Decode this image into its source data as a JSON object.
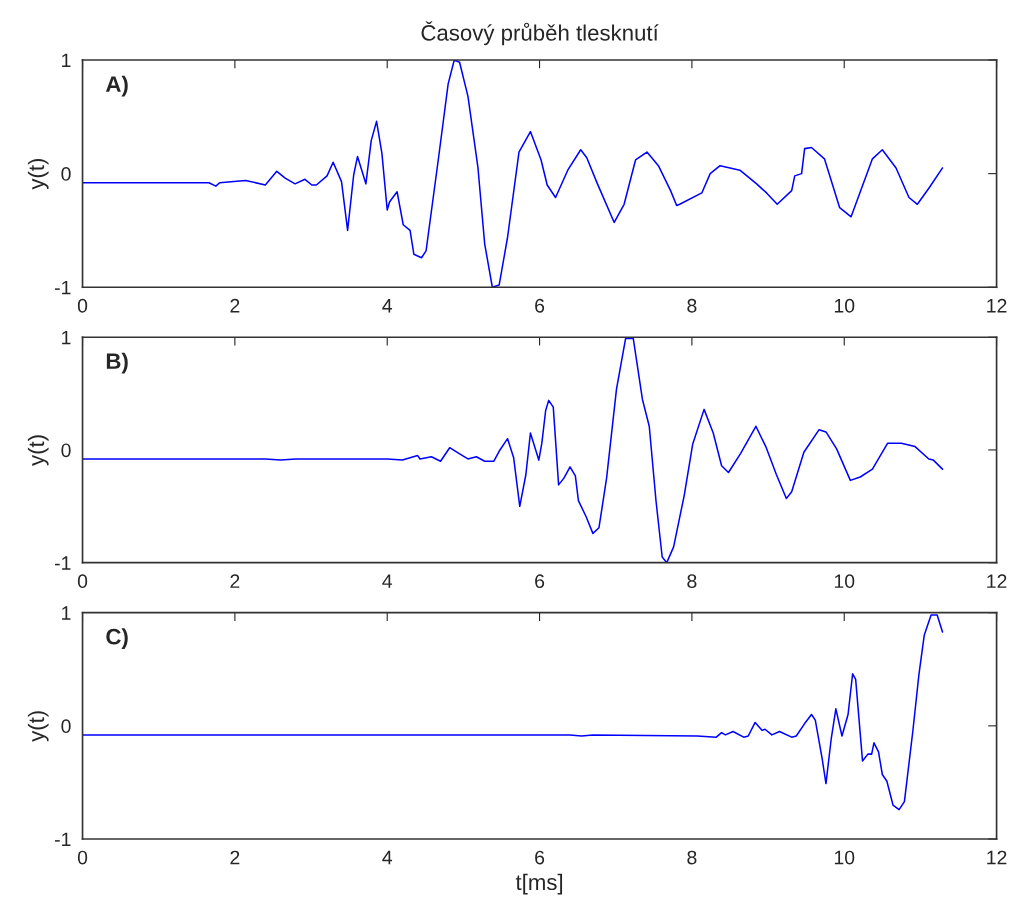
{
  "chart_data": [
    {
      "type": "line",
      "title": "Časový průběh tlesknutí",
      "ylabel": "y(t)",
      "annotations": [
        "A)"
      ],
      "xlim": [
        0,
        12
      ],
      "ylim": [
        -1,
        1
      ],
      "xticks": [
        0,
        2,
        4,
        6,
        8,
        10,
        12
      ],
      "yticks": [
        -1,
        0,
        1
      ],
      "grid": false,
      "legend": false,
      "series": [
        {
          "color": "#0000ff",
          "x": [
            0,
            1.66,
            1.75,
            1.8,
            2.14,
            2.4,
            2.55,
            2.66,
            2.79,
            2.92,
            3.01,
            3.07,
            3.21,
            3.29,
            3.4,
            3.48,
            3.56,
            3.61,
            3.72,
            3.79,
            3.86,
            3.93,
            4.0,
            4.03,
            4.13,
            4.21,
            4.3,
            4.35,
            4.45,
            4.51,
            4.67,
            4.8,
            4.88,
            4.95,
            5.06,
            5.19,
            5.28,
            5.38,
            5.47,
            5.58,
            5.73,
            5.88,
            6.02,
            6.1,
            6.21,
            6.37,
            6.54,
            6.62,
            6.76,
            6.98,
            7.11,
            7.26,
            7.41,
            7.56,
            7.72,
            7.8,
            7.84,
            8.13,
            8.24,
            8.37,
            8.63,
            8.85,
            8.98,
            9.12,
            9.31,
            9.35,
            9.44,
            9.48,
            9.57,
            9.74,
            9.94,
            10.09,
            10.37,
            10.5,
            10.68,
            10.85,
            10.96,
            11.12,
            11.29
          ],
          "values": [
            -0.08,
            -0.08,
            -0.11,
            -0.08,
            -0.06,
            -0.1,
            0.02,
            -0.04,
            -0.09,
            -0.05,
            -0.1,
            -0.1,
            -0.02,
            0.1,
            -0.07,
            -0.5,
            -0.01,
            0.15,
            -0.09,
            0.29,
            0.46,
            0.18,
            -0.32,
            -0.25,
            -0.16,
            -0.45,
            -0.5,
            -0.71,
            -0.74,
            -0.68,
            0.12,
            0.79,
            1.0,
            0.98,
            0.68,
            0.06,
            -0.62,
            -1.0,
            -0.98,
            -0.56,
            0.19,
            0.37,
            0.12,
            -0.1,
            -0.21,
            0.03,
            0.21,
            0.14,
            -0.09,
            -0.43,
            -0.27,
            0.12,
            0.19,
            0.07,
            -0.15,
            -0.28,
            -0.27,
            -0.17,
            0.0,
            0.07,
            0.03,
            -0.09,
            -0.17,
            -0.27,
            -0.15,
            -0.02,
            0.0,
            0.22,
            0.23,
            0.13,
            -0.3,
            -0.38,
            0.13,
            0.21,
            0.05,
            -0.21,
            -0.27,
            -0.12,
            0.05
          ]
        }
      ]
    },
    {
      "type": "line",
      "ylabel": "y(t)",
      "annotations": [
        "B)"
      ],
      "xlim": [
        0,
        12
      ],
      "ylim": [
        -1,
        1
      ],
      "xticks": [
        0,
        2,
        4,
        6,
        8,
        10,
        12
      ],
      "yticks": [
        -1,
        0,
        1
      ],
      "grid": false,
      "legend": false,
      "series": [
        {
          "color": "#0000ff",
          "x": [
            0,
            2.4,
            2.6,
            2.8,
            4.0,
            4.2,
            4.4,
            4.43,
            4.58,
            4.7,
            4.82,
            4.94,
            5.06,
            5.17,
            5.28,
            5.4,
            5.48,
            5.58,
            5.66,
            5.74,
            5.82,
            5.88,
            5.99,
            6.03,
            6.08,
            6.12,
            6.18,
            6.25,
            6.32,
            6.4,
            6.47,
            6.51,
            6.61,
            6.7,
            6.78,
            6.88,
            7.01,
            7.13,
            7.23,
            7.35,
            7.44,
            7.53,
            7.61,
            7.67,
            7.76,
            7.9,
            8.01,
            8.16,
            8.28,
            8.39,
            8.48,
            8.64,
            8.84,
            8.97,
            9.11,
            9.24,
            9.31,
            9.47,
            9.67,
            9.76,
            9.9,
            10.08,
            10.21,
            10.37,
            10.57,
            10.75,
            10.93,
            11.11,
            11.17,
            11.29
          ],
          "values": [
            -0.08,
            -0.08,
            -0.09,
            -0.08,
            -0.08,
            -0.09,
            -0.05,
            -0.08,
            -0.06,
            -0.1,
            0.02,
            -0.03,
            -0.08,
            -0.06,
            -0.1,
            -0.1,
            0.0,
            0.1,
            -0.07,
            -0.5,
            -0.22,
            0.15,
            -0.09,
            0.06,
            0.35,
            0.44,
            0.38,
            -0.31,
            -0.25,
            -0.15,
            -0.23,
            -0.45,
            -0.59,
            -0.74,
            -0.69,
            -0.25,
            0.54,
            0.99,
            0.99,
            0.45,
            0.21,
            -0.46,
            -0.95,
            -1.0,
            -0.86,
            -0.4,
            0.05,
            0.36,
            0.15,
            -0.14,
            -0.2,
            -0.03,
            0.21,
            0.03,
            -0.22,
            -0.43,
            -0.37,
            -0.02,
            0.18,
            0.16,
            0.01,
            -0.27,
            -0.24,
            -0.17,
            0.06,
            0.06,
            0.03,
            -0.08,
            -0.09,
            -0.17
          ]
        }
      ]
    },
    {
      "type": "line",
      "xlabel": "t[ms]",
      "ylabel": "y(t)",
      "annotations": [
        "C)"
      ],
      "xlim": [
        0,
        12
      ],
      "ylim": [
        -1,
        1
      ],
      "xticks": [
        0,
        2,
        4,
        6,
        8,
        10,
        12
      ],
      "yticks": [
        -1,
        0,
        1
      ],
      "grid": false,
      "legend": false,
      "series": [
        {
          "color": "#0000ff",
          "x": [
            0,
            6.4,
            6.55,
            6.7,
            8.07,
            8.32,
            8.39,
            8.44,
            8.54,
            8.68,
            8.74,
            8.83,
            8.92,
            8.96,
            9.05,
            9.15,
            9.31,
            9.37,
            9.48,
            9.57,
            9.62,
            9.71,
            9.76,
            9.83,
            9.89,
            9.97,
            10.05,
            10.11,
            10.15,
            10.24,
            10.31,
            10.36,
            10.39,
            10.45,
            10.5,
            10.56,
            10.64,
            10.72,
            10.79,
            10.9,
            10.98,
            11.05,
            11.14,
            11.22,
            11.29
          ],
          "values": [
            -0.08,
            -0.08,
            -0.09,
            -0.08,
            -0.09,
            -0.1,
            -0.06,
            -0.08,
            -0.05,
            -0.1,
            -0.09,
            0.03,
            -0.04,
            -0.03,
            -0.08,
            -0.05,
            -0.1,
            -0.09,
            0.02,
            0.1,
            0.05,
            -0.29,
            -0.51,
            -0.11,
            0.15,
            -0.09,
            0.1,
            0.46,
            0.41,
            -0.31,
            -0.25,
            -0.25,
            -0.15,
            -0.23,
            -0.43,
            -0.49,
            -0.7,
            -0.74,
            -0.67,
            -0.05,
            0.45,
            0.8,
            0.98,
            0.98,
            0.83
          ]
        }
      ]
    }
  ]
}
